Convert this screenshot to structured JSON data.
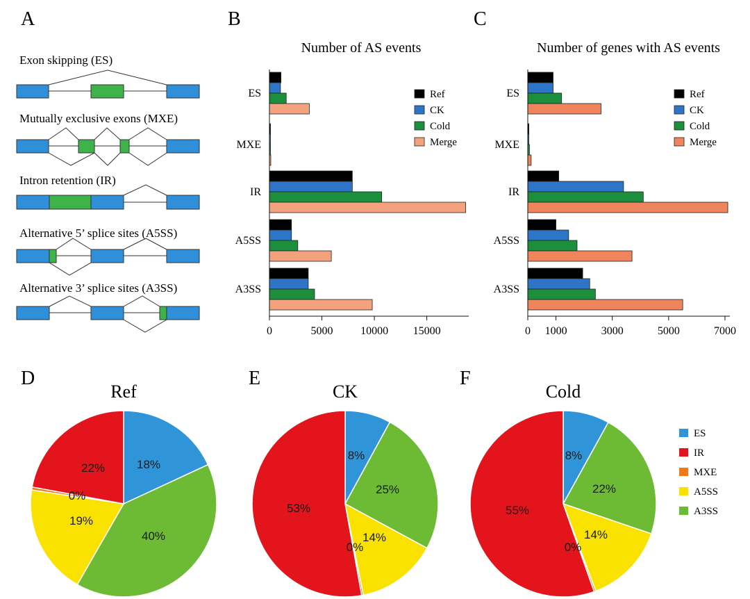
{
  "panel_labels": {
    "A": "A",
    "B": "B",
    "C": "C",
    "D": "D",
    "E": "E",
    "F": "F"
  },
  "colors": {
    "exon_blue": "#2f8fd8",
    "exon_green": "#3db34a",
    "ref": "#000000",
    "ck": "#2e75c8",
    "cold": "#1b8f3c",
    "merge": "#f4a27e",
    "merge_c": "#f0845c",
    "pie_es": "#2f95d8",
    "pie_ir": "#e3141b",
    "pie_mxe": "#f07a18",
    "pie_a5ss": "#f9e200",
    "pie_a3ss": "#6dbb34"
  },
  "schematics": [
    {
      "key": "es",
      "label": "Exon skipping (ES)"
    },
    {
      "key": "mxe",
      "label": "Mutually exclusive exons (MXE)"
    },
    {
      "key": "ir",
      "label": "Intron retention (IR)"
    },
    {
      "key": "a5ss",
      "label": "Alternative 5’ splice sites (A5SS)"
    },
    {
      "key": "a3ss",
      "label": "Alternative  3’ splice sites (A3SS)"
    }
  ],
  "bar_legend": [
    "Ref",
    "CK",
    "Cold",
    "Merge"
  ],
  "pie_legend": [
    "ES",
    "IR",
    "MXE",
    "A5SS",
    "A3SS"
  ],
  "chart_data": [
    {
      "type": "bar",
      "orientation": "horizontal",
      "title": "Number of AS events",
      "categories": [
        "ES",
        "MXE",
        "IR",
        "A5SS",
        "A3SS"
      ],
      "series": [
        {
          "name": "Ref",
          "values": [
            1100,
            60,
            7900,
            2100,
            3700
          ]
        },
        {
          "name": "CK",
          "values": [
            1050,
            50,
            7900,
            2100,
            3700
          ]
        },
        {
          "name": "Cold",
          "values": [
            1600,
            60,
            10700,
            2700,
            4300
          ]
        },
        {
          "name": "Merge",
          "values": [
            3800,
            130,
            18700,
            5900,
            9800
          ]
        }
      ],
      "xticks": [
        0,
        5000,
        10000,
        15000
      ],
      "xlim": [
        0,
        18800
      ]
    },
    {
      "type": "bar",
      "orientation": "horizontal",
      "title": "Number of genes with AS events",
      "categories": [
        "ES",
        "MXE",
        "IR",
        "A5SS",
        "A3SS"
      ],
      "series": [
        {
          "name": "Ref",
          "values": [
            900,
            40,
            1100,
            1000,
            1950
          ]
        },
        {
          "name": "CK",
          "values": [
            900,
            40,
            3400,
            1450,
            2200
          ]
        },
        {
          "name": "Cold",
          "values": [
            1200,
            60,
            4100,
            1750,
            2400
          ]
        },
        {
          "name": "Merge",
          "values": [
            2600,
            120,
            7100,
            3700,
            5500
          ]
        }
      ],
      "xticks": [
        0,
        1000,
        3000,
        5000,
        7000
      ],
      "xlim": [
        0,
        7100
      ]
    },
    {
      "type": "pie",
      "title": "Ref",
      "labels": [
        "ES",
        "A3SS",
        "A5SS",
        "MXE",
        "IR"
      ],
      "values": [
        18,
        40,
        19,
        0.5,
        22
      ],
      "display_labels": [
        "18%",
        "40%",
        "19%",
        "0%",
        "22%"
      ]
    },
    {
      "type": "pie",
      "title": "CK",
      "labels": [
        "ES",
        "A3SS",
        "A5SS",
        "MXE",
        "IR"
      ],
      "values": [
        8,
        25,
        14,
        0.3,
        53
      ],
      "display_labels": [
        "8%",
        "25%",
        "14%",
        "0%",
        "53%"
      ]
    },
    {
      "type": "pie",
      "title": "Cold",
      "labels": [
        "ES",
        "A3SS",
        "A5SS",
        "MXE",
        "IR"
      ],
      "values": [
        8,
        22,
        14,
        0.3,
        55
      ],
      "display_labels": [
        "8%",
        "22%",
        "14%",
        "0%",
        "55%"
      ]
    }
  ]
}
